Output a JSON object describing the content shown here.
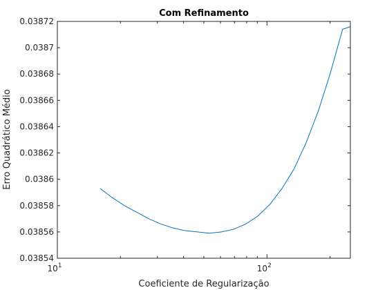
{
  "chart_data": {
    "type": "line",
    "title": "Com Refinamento",
    "xlabel": "Coeficiente de Regularização",
    "ylabel": "Erro Quadrático Médio",
    "xscale": "log",
    "xlim": [
      10,
      250
    ],
    "ylim": [
      0.03854,
      0.03872
    ],
    "grid": false,
    "x_ticks": [
      {
        "value": 10,
        "base": "10",
        "exp": "1"
      },
      {
        "value": 100,
        "base": "10",
        "exp": "2"
      }
    ],
    "y_ticks": [
      {
        "value": 0.03854,
        "label": "0.03854"
      },
      {
        "value": 0.03856,
        "label": "0.03856"
      },
      {
        "value": 0.03858,
        "label": "0.03858"
      },
      {
        "value": 0.0386,
        "label": "0.0386"
      },
      {
        "value": 0.03862,
        "label": "0.03862"
      },
      {
        "value": 0.03864,
        "label": "0.03864"
      },
      {
        "value": 0.03866,
        "label": "0.03866"
      },
      {
        "value": 0.03868,
        "label": "0.03868"
      },
      {
        "value": 0.0387,
        "label": "0.0387"
      },
      {
        "value": 0.03872,
        "label": "0.03872"
      }
    ],
    "series": [
      {
        "color": "#0072bd",
        "x": [
          16,
          18.3,
          20.9,
          23.9,
          27.3,
          31.2,
          35.6,
          40.7,
          46.5,
          53.1,
          60.7,
          69.3,
          79.2,
          90.4,
          103.3,
          118,
          134.8,
          154,
          175.9,
          200.9,
          229.5,
          250
        ],
        "y": [
          0.038593,
          0.038586,
          0.03858,
          0.038575,
          0.03857,
          0.038566,
          0.038563,
          0.038561,
          0.03856,
          0.038559,
          0.03856,
          0.038562,
          0.038566,
          0.038572,
          0.038581,
          0.038593,
          0.038608,
          0.038628,
          0.038652,
          0.038681,
          0.038714,
          0.038716
        ]
      }
    ]
  }
}
